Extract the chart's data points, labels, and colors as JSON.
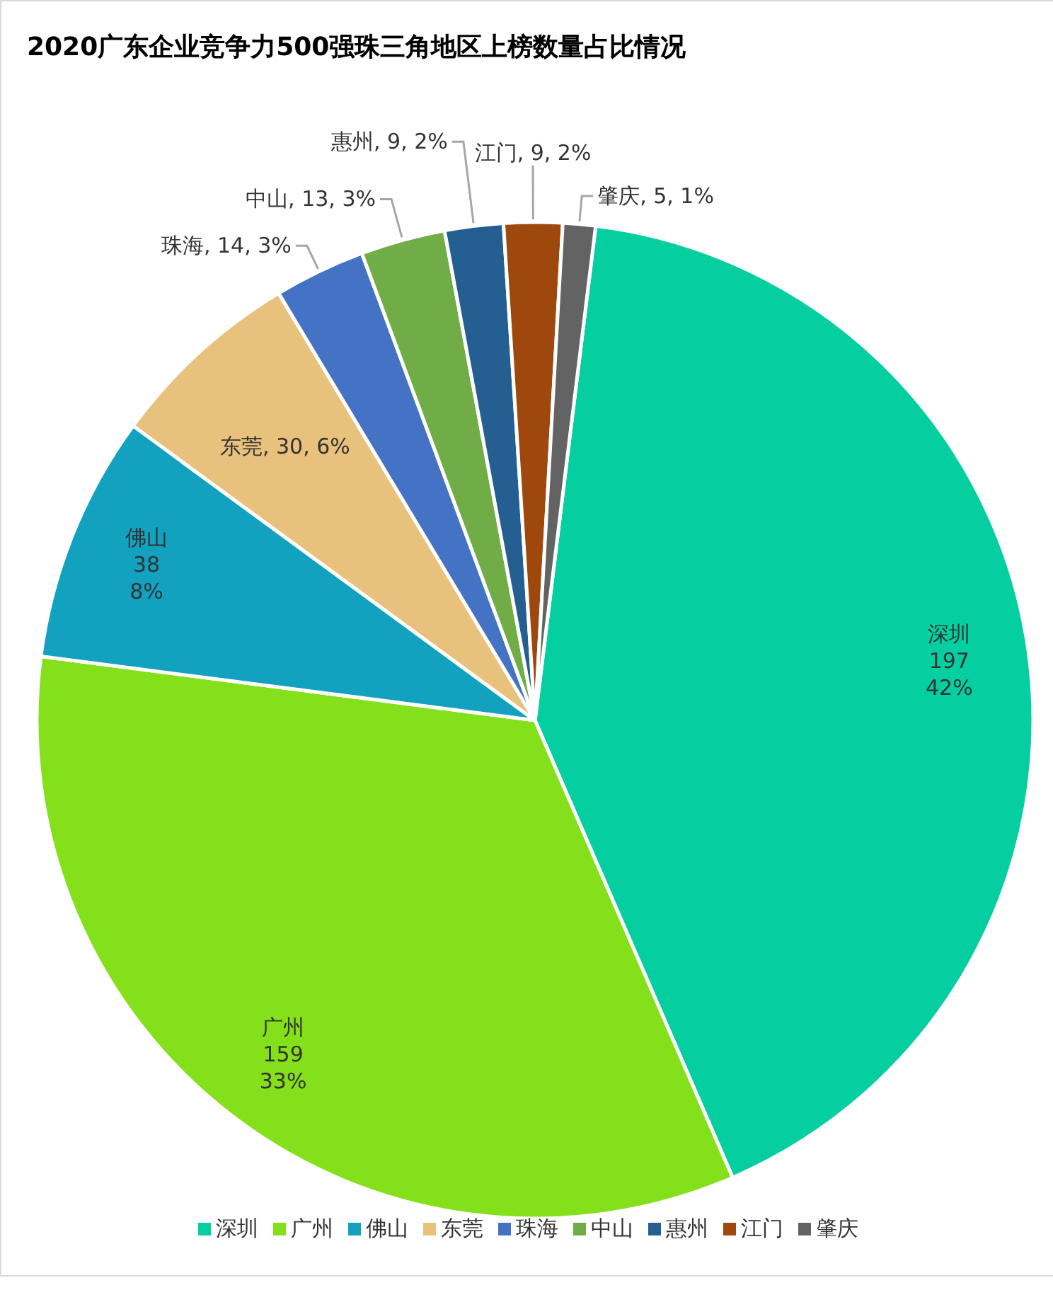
{
  "chart_data": {
    "type": "pie",
    "title": "2020广东企业竞争力500强珠三角地区上榜数量占比情况",
    "categories": [
      "深圳",
      "广州",
      "佛山",
      "东莞",
      "珠海",
      "中山",
      "惠州",
      "江门",
      "肇庆"
    ],
    "values": [
      197,
      159,
      38,
      30,
      14,
      13,
      9,
      9,
      5
    ],
    "value_labels": [
      "197\n42%",
      "159\n33%",
      "38\n8%",
      ", 30, 6%",
      ", 14, 3%",
      ", 13, 3%",
      ", 9, 2%",
      ", 9, 2%",
      ", 5, 1%"
    ],
    "colors": [
      "#05cfa0",
      "#84e01a",
      "#13a1c0",
      "#e8c17d",
      "#4472c4",
      "#70ad47",
      "#255e91",
      "#9e480e",
      "#636363"
    ],
    "legend": "bottom"
  }
}
